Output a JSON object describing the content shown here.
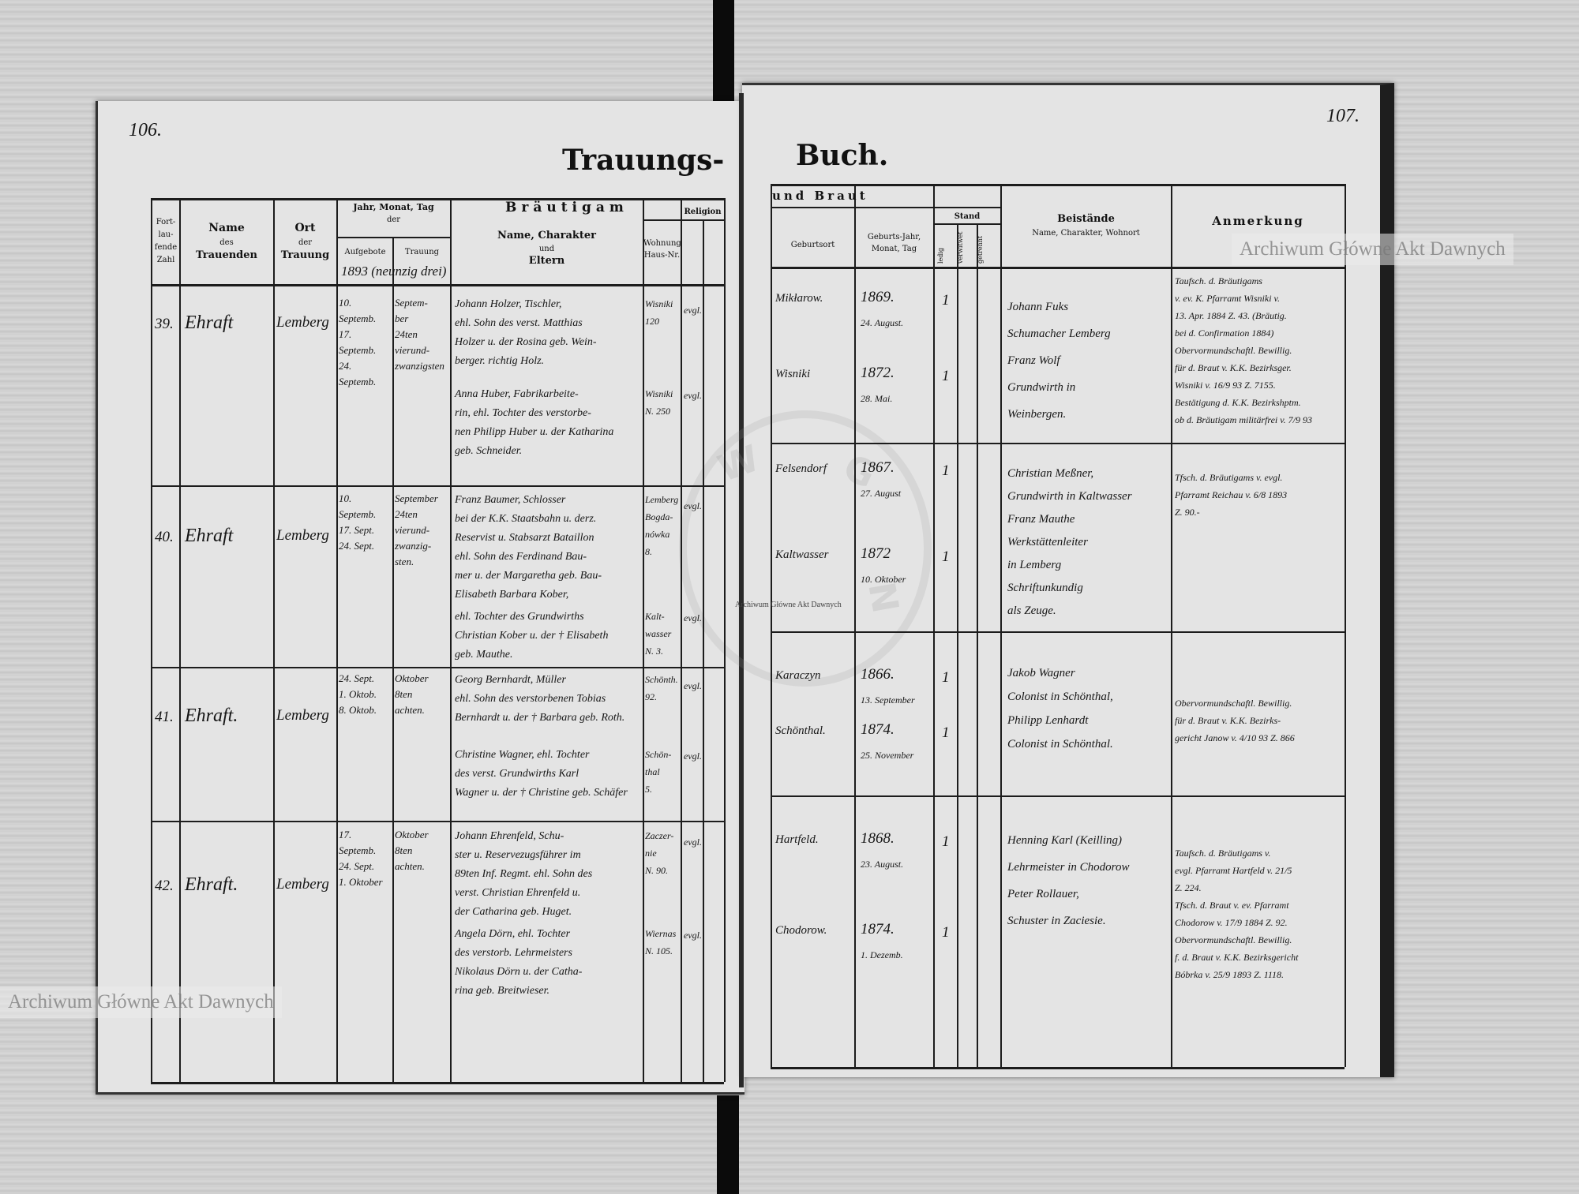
{
  "page_numbers": {
    "left": "106.",
    "right": "107."
  },
  "title": {
    "left": "Trauungs-",
    "right": "Buch."
  },
  "watermark": {
    "text": "Archiwum Główne Akt Dawnych",
    "stamp_text": "ARCHIWUM GŁÓWNE AKT DAWNYCH"
  },
  "headers": {
    "number": [
      "Fort-",
      "lau-",
      "fende",
      "Zahl"
    ],
    "officiant": [
      "Name",
      "des",
      "Trauenden"
    ],
    "place": [
      "Ort",
      "der",
      "Trauung"
    ],
    "date_group": [
      "Jahr, Monat, Tag",
      "der"
    ],
    "banns": "Aufgebote",
    "wedding": "Trauung",
    "year_note": "1893 (neunzig drei)",
    "groom_group": "Bräutigam",
    "bride_group": "und Braut",
    "name_char": [
      "Name, Charakter",
      "und",
      "Eltern"
    ],
    "residence": [
      "Wohnung",
      "Haus-Nr."
    ],
    "religion": "Religion",
    "birthplace": "Geburtsort",
    "birthdate": [
      "Geburts-Jahr,",
      "Monat, Tag"
    ],
    "status": "Stand",
    "status_cols": [
      "ledig",
      "verwitwet",
      "getrennt"
    ],
    "witnesses": [
      "Beistände",
      "Name, Charakter, Wohnort"
    ],
    "remarks": "Anmerkung"
  },
  "entries": [
    {
      "number": "39.",
      "officiant": "Ehraft",
      "place": "Lemberg",
      "banns": [
        "10. Septemb.",
        "17. Septemb.",
        "24. Septemb."
      ],
      "wedding": [
        "Septem-",
        "ber",
        "24ten",
        "vierund-",
        "zwanzigsten"
      ],
      "groom": [
        "Johann Holzer, Tischler,",
        "ehl. Sohn des verst. Matthias",
        "Holzer u. der Rosina geb. Wein-",
        "berger. richtig Holz."
      ],
      "groom_residence": [
        "Wisniki",
        "120"
      ],
      "groom_religion": "evgl.",
      "bride": [
        "Anna Huber, Fabrikarbeite-",
        "rin, ehl. Tochter des verstorbe-",
        "nen Philipp Huber u. der Katharina",
        "geb. Schneider."
      ],
      "bride_residence": [
        "Wisniki",
        "N. 250"
      ],
      "bride_religion": "evgl.",
      "groom_birthplace": "Mikłarow.",
      "groom_birth": [
        "1869.",
        "24. August."
      ],
      "groom_status": "1",
      "bride_birthplace": "Wisniki",
      "bride_birth": [
        "1872.",
        "28. Mai."
      ],
      "bride_status": "1",
      "witnesses": [
        "Johann Fuks",
        "Schumacher Lemberg",
        "Franz Wolf",
        "Grundwirth in",
        "Weinbergen."
      ],
      "remarks": [
        "Taufsch. d. Bräutigams",
        "v. ev. K. Pfarramt Wisniki v.",
        "13. Apr. 1884 Z. 43. (Bräutig.",
        "bei d. Confirmation 1884)",
        "Obervormundschaftl. Bewillig.",
        "für d. Braut v. K.K. Bezirksger.",
        "Wisniki v. 16/9 93 Z. 7155.",
        "Bestätigung d. K.K. Bezirkshptm.",
        "ob d. Bräutigam militärfrei v. 7/9 93"
      ]
    },
    {
      "number": "40.",
      "officiant": "Ehraft",
      "place": "Lemberg",
      "banns": [
        "10. Septemb.",
        "17. Sept.",
        "24. Sept."
      ],
      "wedding": [
        "September",
        "24ten",
        "vierund-",
        "zwanzig-",
        "sten."
      ],
      "groom": [
        "Franz Baumer, Schlosser",
        "bei der K.K. Staatsbahn u. derz.",
        "Reservist u. Stabsarzt Bataillon",
        "ehl. Sohn des Ferdinand Bau-",
        "mer u. der Margaretha geb. Bau-",
        "Elisabeth Barbara Kober,"
      ],
      "groom_residence": [
        "Lemberg",
        "Bogda-",
        "nówka",
        "8."
      ],
      "groom_religion": "evgl.",
      "bride": [
        "ehl. Tochter des Grundwirths",
        "Christian Kober u. der † Elisabeth",
        "geb. Mauthe."
      ],
      "bride_residence": [
        "Kalt-",
        "wasser",
        "N. 3."
      ],
      "bride_religion": "evgl.",
      "groom_birthplace": "Felsendorf",
      "groom_birth": [
        "1867.",
        "27. August"
      ],
      "groom_status": "1",
      "bride_birthplace": "Kaltwasser",
      "bride_birth": [
        "1872",
        "10. Oktober"
      ],
      "bride_status": "1",
      "witnesses": [
        "Christian Meßner,",
        "Grundwirth in Kaltwasser",
        "Franz Mauthe",
        "Werkstättenleiter",
        "in Lemberg",
        "Schriftunkundig",
        "als Zeuge."
      ],
      "remarks": [
        "Tfsch. d. Bräutigams v. evgl.",
        "Pfarramt Reichau v. 6/8 1893",
        "Z. 90.-"
      ]
    },
    {
      "number": "41.",
      "officiant": "Ehraft.",
      "place": "Lemberg",
      "banns": [
        "24. Sept.",
        "1. Oktob.",
        "8. Oktob."
      ],
      "wedding": [
        "Oktober",
        "8ten",
        "achten."
      ],
      "groom": [
        "Georg Bernhardt, Müller",
        "ehl. Sohn des verstorbenen Tobias",
        "Bernhardt u. der † Barbara geb. Roth."
      ],
      "groom_residence": [
        "Schönth.",
        "92."
      ],
      "groom_religion": "evgl.",
      "bride": [
        "Christine Wagner, ehl. Tochter",
        "des verst. Grundwirths Karl",
        "Wagner u. der † Christine geb. Schäfer"
      ],
      "bride_residence": [
        "Schön-",
        "thal",
        "5."
      ],
      "bride_religion": "evgl.",
      "groom_birthplace": "Karaczyn",
      "groom_birth": [
        "1866.",
        "13. September"
      ],
      "groom_status": "1",
      "bride_birthplace": "Schönthal.",
      "bride_birth": [
        "1874.",
        "25. November"
      ],
      "bride_status": "1",
      "witnesses": [
        "Jakob Wagner",
        "Colonist in Schönthal,",
        "Philipp Lenhardt",
        "Colonist in Schönthal."
      ],
      "remarks": [
        "Obervormundschaftl. Bewillig.",
        "für d. Braut v. K.K. Bezirks-",
        "gericht Janow v. 4/10 93 Z. 866"
      ]
    },
    {
      "number": "42.",
      "officiant": "Ehraft.",
      "place": "Lemberg",
      "banns": [
        "17. Septemb.",
        "24. Sept.",
        "1. Oktober"
      ],
      "wedding": [
        "Oktober",
        "8ten",
        "achten."
      ],
      "groom": [
        "Johann Ehrenfeld, Schu-",
        "ster u. Reservezugsführer im",
        "89ten Inf. Regmt. ehl. Sohn des",
        "verst. Christian Ehrenfeld u.",
        "der Catharina geb. Huget."
      ],
      "groom_residence": [
        "Zaczer-",
        "nie",
        "N. 90."
      ],
      "groom_religion": "evgl.",
      "bride": [
        "Angela Dörn, ehl. Tochter",
        "des verstorb. Lehrmeisters",
        "Nikolaus Dörn u. der Catha-",
        "rina geb. Breitwieser."
      ],
      "bride_residence": [
        "Wiernas",
        "N. 105."
      ],
      "bride_religion": "evgl.",
      "groom_birthplace": "Hartfeld.",
      "groom_birth": [
        "1868.",
        "23. August."
      ],
      "groom_status": "1",
      "bride_birthplace": "Chodorow.",
      "bride_birth": [
        "1874.",
        "1. Dezemb."
      ],
      "bride_status": "1",
      "witnesses": [
        "Henning Karl (Keilling)",
        "Lehrmeister in Chodorow",
        "Peter Rollauer,",
        "Schuster in Zaciesie."
      ],
      "remarks": [
        "Taufsch. d. Bräutigams v.",
        "evgl. Pfarramt Hartfeld v. 21/5",
        "Z. 224.",
        "Tfsch. d. Braut v. ev. Pfarramt",
        "Chodorow v. 17/9 1884 Z. 92.",
        "Obervormundschaftl. Bewillig.",
        "f. d. Braut v. K.K. Bezirksgericht",
        "Bóbrka v. 25/9 1893 Z. 1118."
      ]
    }
  ]
}
